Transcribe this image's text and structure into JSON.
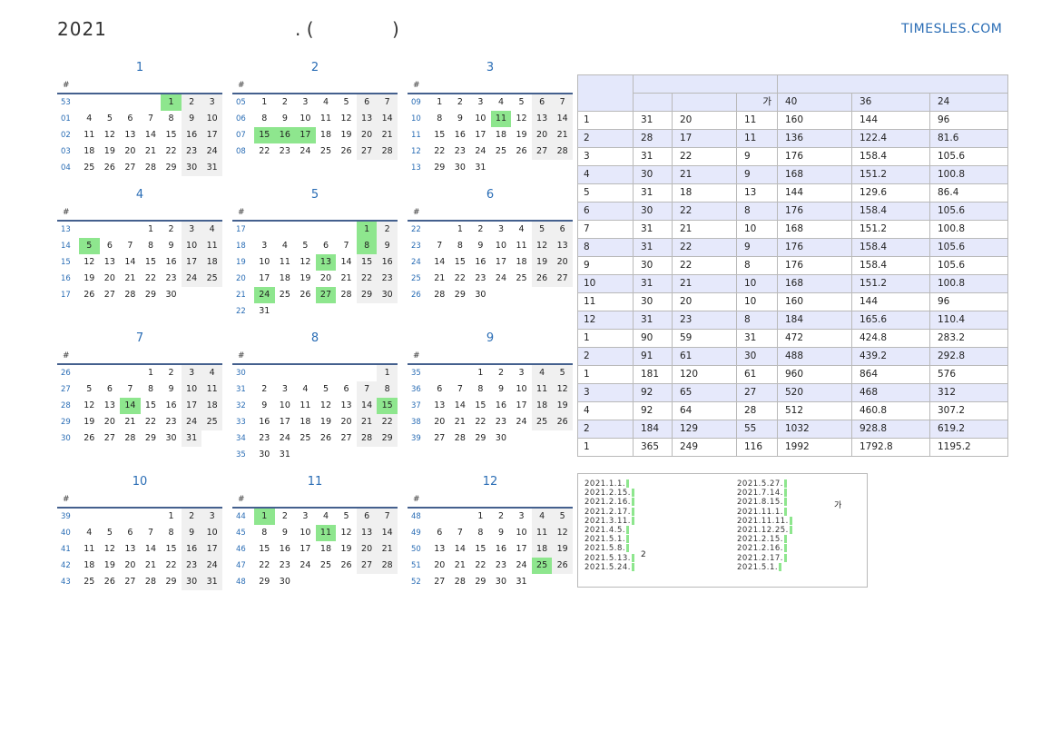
{
  "header": {
    "year": "2021",
    "title_mid": ". (",
    "title_end": ")",
    "site": "TIMESLES.COM"
  },
  "calendar": {
    "week_header": "#",
    "months": [
      {
        "name": "1",
        "weeks": [
          {
            "wk": "53",
            "days": [
              "",
              "",
              "",
              "",
              "1",
              "2",
              "3"
            ]
          },
          {
            "wk": "01",
            "days": [
              "4",
              "5",
              "6",
              "7",
              "8",
              "9",
              "10"
            ]
          },
          {
            "wk": "02",
            "days": [
              "11",
              "12",
              "13",
              "14",
              "15",
              "16",
              "17"
            ]
          },
          {
            "wk": "03",
            "days": [
              "18",
              "19",
              "20",
              "21",
              "22",
              "23",
              "24"
            ]
          },
          {
            "wk": "04",
            "days": [
              "25",
              "26",
              "27",
              "28",
              "29",
              "30",
              "31"
            ]
          }
        ],
        "holidays": [
          "1"
        ]
      },
      {
        "name": "2",
        "weeks": [
          {
            "wk": "05",
            "days": [
              "1",
              "2",
              "3",
              "4",
              "5",
              "6",
              "7"
            ]
          },
          {
            "wk": "06",
            "days": [
              "8",
              "9",
              "10",
              "11",
              "12",
              "13",
              "14"
            ]
          },
          {
            "wk": "07",
            "days": [
              "15",
              "16",
              "17",
              "18",
              "19",
              "20",
              "21"
            ]
          },
          {
            "wk": "08",
            "days": [
              "22",
              "23",
              "24",
              "25",
              "26",
              "27",
              "28"
            ]
          }
        ],
        "holidays": [
          "15",
          "16",
          "17"
        ]
      },
      {
        "name": "3",
        "weeks": [
          {
            "wk": "09",
            "days": [
              "1",
              "2",
              "3",
              "4",
              "5",
              "6",
              "7"
            ]
          },
          {
            "wk": "10",
            "days": [
              "8",
              "9",
              "10",
              "11",
              "12",
              "13",
              "14"
            ]
          },
          {
            "wk": "11",
            "days": [
              "15",
              "16",
              "17",
              "18",
              "19",
              "20",
              "21"
            ]
          },
          {
            "wk": "12",
            "days": [
              "22",
              "23",
              "24",
              "25",
              "26",
              "27",
              "28"
            ]
          },
          {
            "wk": "13",
            "days": [
              "29",
              "30",
              "31",
              "",
              "",
              "",
              ""
            ]
          }
        ],
        "holidays": [
          "11"
        ]
      },
      {
        "name": "4",
        "weeks": [
          {
            "wk": "13",
            "days": [
              "",
              "",
              "",
              "1",
              "2",
              "3",
              "4"
            ]
          },
          {
            "wk": "14",
            "days": [
              "5",
              "6",
              "7",
              "8",
              "9",
              "10",
              "11"
            ]
          },
          {
            "wk": "15",
            "days": [
              "12",
              "13",
              "14",
              "15",
              "16",
              "17",
              "18"
            ]
          },
          {
            "wk": "16",
            "days": [
              "19",
              "20",
              "21",
              "22",
              "23",
              "24",
              "25"
            ]
          },
          {
            "wk": "17",
            "days": [
              "26",
              "27",
              "28",
              "29",
              "30",
              "",
              ""
            ]
          }
        ],
        "holidays": [
          "5"
        ]
      },
      {
        "name": "5",
        "weeks": [
          {
            "wk": "17",
            "days": [
              "",
              "",
              "",
              "",
              "",
              "1",
              "2"
            ]
          },
          {
            "wk": "18",
            "days": [
              "3",
              "4",
              "5",
              "6",
              "7",
              "8",
              "9"
            ]
          },
          {
            "wk": "19",
            "days": [
              "10",
              "11",
              "12",
              "13",
              "14",
              "15",
              "16"
            ]
          },
          {
            "wk": "20",
            "days": [
              "17",
              "18",
              "19",
              "20",
              "21",
              "22",
              "23"
            ]
          },
          {
            "wk": "21",
            "days": [
              "24",
              "25",
              "26",
              "27",
              "28",
              "29",
              "30"
            ]
          },
          {
            "wk": "22",
            "days": [
              "31",
              "",
              "",
              "",
              "",
              "",
              ""
            ]
          }
        ],
        "holidays": [
          "1",
          "8",
          "13",
          "24",
          "27"
        ]
      },
      {
        "name": "6",
        "weeks": [
          {
            "wk": "22",
            "days": [
              "",
              "1",
              "2",
              "3",
              "4",
              "5",
              "6"
            ]
          },
          {
            "wk": "23",
            "days": [
              "7",
              "8",
              "9",
              "10",
              "11",
              "12",
              "13"
            ]
          },
          {
            "wk": "24",
            "days": [
              "14",
              "15",
              "16",
              "17",
              "18",
              "19",
              "20"
            ]
          },
          {
            "wk": "25",
            "days": [
              "21",
              "22",
              "23",
              "24",
              "25",
              "26",
              "27"
            ]
          },
          {
            "wk": "26",
            "days": [
              "28",
              "29",
              "30",
              "",
              "",
              "",
              ""
            ]
          }
        ],
        "holidays": []
      },
      {
        "name": "7",
        "weeks": [
          {
            "wk": "26",
            "days": [
              "",
              "",
              "",
              "1",
              "2",
              "3",
              "4"
            ]
          },
          {
            "wk": "27",
            "days": [
              "5",
              "6",
              "7",
              "8",
              "9",
              "10",
              "11"
            ]
          },
          {
            "wk": "28",
            "days": [
              "12",
              "13",
              "14",
              "15",
              "16",
              "17",
              "18"
            ]
          },
          {
            "wk": "29",
            "days": [
              "19",
              "20",
              "21",
              "22",
              "23",
              "24",
              "25"
            ]
          },
          {
            "wk": "30",
            "days": [
              "26",
              "27",
              "28",
              "29",
              "30",
              "31",
              ""
            ]
          }
        ],
        "holidays": [
          "14"
        ]
      },
      {
        "name": "8",
        "weeks": [
          {
            "wk": "30",
            "days": [
              "",
              "",
              "",
              "",
              "",
              "",
              "1"
            ]
          },
          {
            "wk": "31",
            "days": [
              "2",
              "3",
              "4",
              "5",
              "6",
              "7",
              "8"
            ]
          },
          {
            "wk": "32",
            "days": [
              "9",
              "10",
              "11",
              "12",
              "13",
              "14",
              "15"
            ]
          },
          {
            "wk": "33",
            "days": [
              "16",
              "17",
              "18",
              "19",
              "20",
              "21",
              "22"
            ]
          },
          {
            "wk": "34",
            "days": [
              "23",
              "24",
              "25",
              "26",
              "27",
              "28",
              "29"
            ]
          },
          {
            "wk": "35",
            "days": [
              "30",
              "31",
              "",
              "",
              "",
              "",
              ""
            ]
          }
        ],
        "holidays": [
          "15"
        ]
      },
      {
        "name": "9",
        "weeks": [
          {
            "wk": "35",
            "days": [
              "",
              "",
              "1",
              "2",
              "3",
              "4",
              "5"
            ]
          },
          {
            "wk": "36",
            "days": [
              "6",
              "7",
              "8",
              "9",
              "10",
              "11",
              "12"
            ]
          },
          {
            "wk": "37",
            "days": [
              "13",
              "14",
              "15",
              "16",
              "17",
              "18",
              "19"
            ]
          },
          {
            "wk": "38",
            "days": [
              "20",
              "21",
              "22",
              "23",
              "24",
              "25",
              "26"
            ]
          },
          {
            "wk": "39",
            "days": [
              "27",
              "28",
              "29",
              "30",
              "",
              "",
              ""
            ]
          }
        ],
        "holidays": []
      },
      {
        "name": "10",
        "weeks": [
          {
            "wk": "39",
            "days": [
              "",
              "",
              "",
              "",
              "1",
              "2",
              "3"
            ]
          },
          {
            "wk": "40",
            "days": [
              "4",
              "5",
              "6",
              "7",
              "8",
              "9",
              "10"
            ]
          },
          {
            "wk": "41",
            "days": [
              "11",
              "12",
              "13",
              "14",
              "15",
              "16",
              "17"
            ]
          },
          {
            "wk": "42",
            "days": [
              "18",
              "19",
              "20",
              "21",
              "22",
              "23",
              "24"
            ]
          },
          {
            "wk": "43",
            "days": [
              "25",
              "26",
              "27",
              "28",
              "29",
              "30",
              "31"
            ]
          }
        ],
        "holidays": []
      },
      {
        "name": "11",
        "weeks": [
          {
            "wk": "44",
            "days": [
              "1",
              "2",
              "3",
              "4",
              "5",
              "6",
              "7"
            ]
          },
          {
            "wk": "45",
            "days": [
              "8",
              "9",
              "10",
              "11",
              "12",
              "13",
              "14"
            ]
          },
          {
            "wk": "46",
            "days": [
              "15",
              "16",
              "17",
              "18",
              "19",
              "20",
              "21"
            ]
          },
          {
            "wk": "47",
            "days": [
              "22",
              "23",
              "24",
              "25",
              "26",
              "27",
              "28"
            ]
          },
          {
            "wk": "48",
            "days": [
              "29",
              "30",
              "",
              "",
              "",
              "",
              ""
            ]
          }
        ],
        "holidays": [
          "1",
          "11"
        ]
      },
      {
        "name": "12",
        "weeks": [
          {
            "wk": "48",
            "days": [
              "",
              "",
              "1",
              "2",
              "3",
              "4",
              "5"
            ]
          },
          {
            "wk": "49",
            "days": [
              "6",
              "7",
              "8",
              "9",
              "10",
              "11",
              "12"
            ]
          },
          {
            "wk": "50",
            "days": [
              "13",
              "14",
              "15",
              "16",
              "17",
              "18",
              "19"
            ]
          },
          {
            "wk": "51",
            "days": [
              "20",
              "21",
              "22",
              "23",
              "24",
              "25",
              "26"
            ]
          },
          {
            "wk": "52",
            "days": [
              "27",
              "28",
              "29",
              "30",
              "31",
              "",
              ""
            ]
          }
        ],
        "holidays": [
          "25"
        ]
      }
    ]
  },
  "stats": {
    "header_row2": [
      "",
      "",
      "가",
      "40",
      "36",
      "24"
    ],
    "rows": [
      [
        "1",
        "31",
        "20",
        "11",
        "160",
        "144",
        "96"
      ],
      [
        "2",
        "28",
        "17",
        "11",
        "136",
        "122.4",
        "81.6"
      ],
      [
        "3",
        "31",
        "22",
        "9",
        "176",
        "158.4",
        "105.6"
      ],
      [
        "4",
        "30",
        "21",
        "9",
        "168",
        "151.2",
        "100.8"
      ],
      [
        "5",
        "31",
        "18",
        "13",
        "144",
        "129.6",
        "86.4"
      ],
      [
        "6",
        "30",
        "22",
        "8",
        "176",
        "158.4",
        "105.6"
      ],
      [
        "7",
        "31",
        "21",
        "10",
        "168",
        "151.2",
        "100.8"
      ],
      [
        "8",
        "31",
        "22",
        "9",
        "176",
        "158.4",
        "105.6"
      ],
      [
        "9",
        "30",
        "22",
        "8",
        "176",
        "158.4",
        "105.6"
      ],
      [
        "10",
        "31",
        "21",
        "10",
        "168",
        "151.2",
        "100.8"
      ],
      [
        "11",
        "30",
        "20",
        "10",
        "160",
        "144",
        "96"
      ],
      [
        "12",
        "31",
        "23",
        "8",
        "184",
        "165.6",
        "110.4"
      ],
      [
        "1",
        "90",
        "59",
        "31",
        "472",
        "424.8",
        "283.2"
      ],
      [
        "2",
        "91",
        "61",
        "30",
        "488",
        "439.2",
        "292.8"
      ],
      [
        "1",
        "181",
        "120",
        "61",
        "960",
        "864",
        "576"
      ],
      [
        "3",
        "92",
        "65",
        "27",
        "520",
        "468",
        "312"
      ],
      [
        "4",
        "92",
        "64",
        "28",
        "512",
        "460.8",
        "307.2"
      ],
      [
        "2",
        "184",
        "129",
        "55",
        "1032",
        "928.8",
        "619.2"
      ],
      [
        "1",
        "365",
        "249",
        "116",
        "1992",
        "1792.8",
        "1195.2"
      ]
    ]
  },
  "holidays_list": {
    "left": [
      "2021.1.1.",
      "2021.2.15.",
      "2021.2.16.",
      "2021.2.17.",
      "2021.3.11.",
      "2021.4.5.",
      "2021.5.1.",
      "2021.5.8.",
      "2021.5.13.",
      "2021.5.24."
    ],
    "left_note": "2",
    "right": [
      "2021.5.27.",
      "2021.7.14.",
      "2021.8.15.",
      "2021.11.1.",
      "2021.11.11.",
      "2021.12.25.",
      "2021.2.15.",
      "2021.2.16.",
      "2021.2.17.",
      "2021.5.1."
    ],
    "right_note": "가"
  }
}
